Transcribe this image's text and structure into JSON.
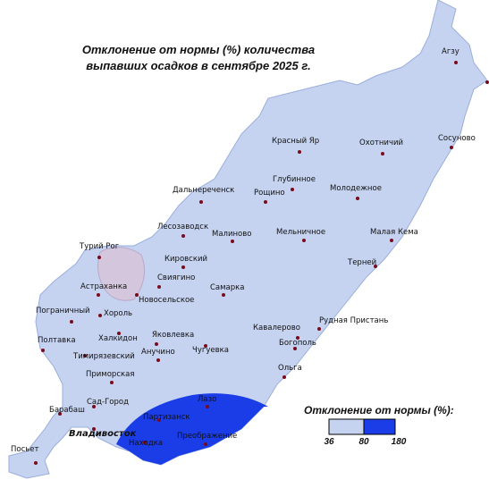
{
  "title_lines": [
    "Отклонение от нормы (%) количества",
    "выпавших осадков в сентябре 2025 г."
  ],
  "stations": [
    {
      "label": "Агзу"
    },
    {
      "label": "Сосуново"
    },
    {
      "label": "Красный Яр"
    },
    {
      "label": "Охотничий"
    },
    {
      "label": "Глубинное"
    },
    {
      "label": "Дальнереченск"
    },
    {
      "label": "Рощино"
    },
    {
      "label": "Молодежное"
    },
    {
      "label": "Лесозаводск"
    },
    {
      "label": "Малиново"
    },
    {
      "label": "Мельничное"
    },
    {
      "label": "Малая Кема"
    },
    {
      "label": "Турий Рог"
    },
    {
      "label": "Кировский"
    },
    {
      "label": "Терней"
    },
    {
      "label": "Свиягино"
    },
    {
      "label": "Астраханка"
    },
    {
      "label": "Новосельское"
    },
    {
      "label": "Самарка"
    },
    {
      "label": "Пограничный"
    },
    {
      "label": "Хороль"
    },
    {
      "label": "Рудная Пристань"
    },
    {
      "label": "Кавалерово"
    },
    {
      "label": "Яковлевка"
    },
    {
      "label": "Халкидон"
    },
    {
      "label": "Богополь"
    },
    {
      "label": "Полтавка"
    },
    {
      "label": "Анучино"
    },
    {
      "label": "Чугуевка"
    },
    {
      "label": "Тимирязевский"
    },
    {
      "label": "Ольга"
    },
    {
      "label": "Приморская"
    },
    {
      "label": "Лазо"
    },
    {
      "label": "Барабаш"
    },
    {
      "label": "Сад-Город"
    },
    {
      "label": "Партизанск"
    },
    {
      "label": "Владивосток"
    },
    {
      "label": "Находка"
    },
    {
      "label": "Преображение"
    },
    {
      "label": "Посьет"
    }
  ],
  "legend": {
    "title": "Отклонение от нормы (%):",
    "ticks": [
      "36",
      "80",
      "180"
    ]
  }
}
